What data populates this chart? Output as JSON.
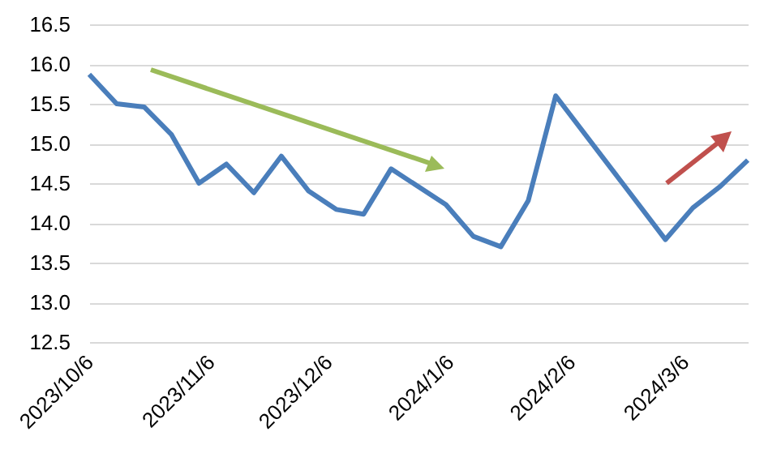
{
  "chart_data": {
    "type": "line",
    "x": [
      "2023-10-06",
      "2023-10-13",
      "2023-10-20",
      "2023-10-27",
      "2023-11-03",
      "2023-11-10",
      "2023-11-17",
      "2023-11-24",
      "2023-12-01",
      "2023-12-08",
      "2023-12-15",
      "2023-12-22",
      "2024-01-05",
      "2024-01-12",
      "2024-01-19",
      "2024-01-26",
      "2024-02-02",
      "2024-03-01",
      "2024-03-08",
      "2024-03-15",
      "2024-03-22"
    ],
    "series": [
      {
        "color": "#4a7ebb",
        "values": [
          15.87,
          15.5,
          15.46,
          15.11,
          14.5,
          14.74,
          14.38,
          14.84,
          14.4,
          14.17,
          14.11,
          14.68,
          14.23,
          13.83,
          13.7,
          14.28,
          15.6,
          13.79,
          14.19,
          14.46,
          14.79
        ]
      }
    ],
    "xlim": [
      "2023-10-06",
      "2024-03-22"
    ],
    "xticks": [
      {
        "value": "2023-10-06",
        "label": "2023/10/6"
      },
      {
        "value": "2023-11-06",
        "label": "2023/11/6"
      },
      {
        "value": "2023-12-06",
        "label": "2023/12/6"
      },
      {
        "value": "2024-01-06",
        "label": "2024/1/6"
      },
      {
        "value": "2024-02-06",
        "label": "2024/2/6"
      },
      {
        "value": "2024-03-06",
        "label": "2024/3/6"
      }
    ],
    "ylim": [
      12.5,
      16.5
    ],
    "yticks": [
      {
        "value": 12.5,
        "label": "12.5"
      },
      {
        "value": 13,
        "label": "13.0"
      },
      {
        "value": 13.5,
        "label": "13.5"
      },
      {
        "value": 14,
        "label": "14.0"
      },
      {
        "value": 14.5,
        "label": "14.5"
      },
      {
        "value": 15,
        "label": "15.0"
      },
      {
        "value": 15.5,
        "label": "15.5"
      },
      {
        "value": 16,
        "label": "16.0"
      },
      {
        "value": 16.5,
        "label": "16.5"
      }
    ],
    "grid": "y",
    "line_style": "solid"
  }
}
